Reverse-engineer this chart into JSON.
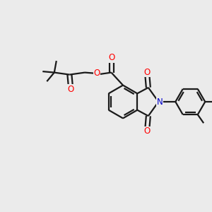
{
  "background_color": "#ebebeb",
  "bond_color": "#1a1a1a",
  "oxygen_color": "#ff0000",
  "nitrogen_color": "#0000cc",
  "line_width": 1.6,
  "double_sep": 0.1,
  "font_size": 8.5,
  "fig_width": 3.0,
  "fig_height": 3.0,
  "dpi": 100,
  "xlim": [
    0,
    10
  ],
  "ylim": [
    0,
    10
  ]
}
